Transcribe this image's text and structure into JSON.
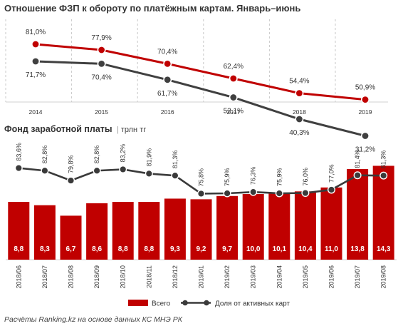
{
  "header": {
    "top_title": "Отношение ФЗП к обороту по платёжным картам. Январь–июнь",
    "bottom_title": "Фонд заработной платы",
    "bottom_unit": "трлн тг"
  },
  "source": "Расчёты Ranking.kz на основе данных КС МНЭ РК",
  "legend": {
    "bars": "Всего",
    "line": "Доля от активных карт"
  },
  "colors": {
    "red": "#c00000",
    "dark": "#404040",
    "line_dark": "#3a3a3a"
  },
  "chart_data": [
    {
      "type": "line",
      "x": [
        "2014",
        "2015",
        "2016",
        "2017",
        "2018",
        "2019"
      ],
      "series": [
        {
          "values": [
            81.0,
            77.9,
            70.4,
            62.4,
            54.4,
            50.9
          ],
          "labels": [
            "81,0%",
            "77,9%",
            "70,4%",
            "62,4%",
            "54,4%",
            "50,9%"
          ],
          "color": "red"
        },
        {
          "values": [
            71.7,
            70.4,
            61.7,
            52.1,
            40.3,
            31.2
          ],
          "labels": [
            "71,7%",
            "70,4%",
            "61,7%",
            "52,1%",
            "40,3%",
            "31,2%"
          ],
          "color": "dark"
        }
      ]
    },
    {
      "type": "bar",
      "categories": [
        "2018/06",
        "2018/07",
        "2018/08",
        "2018/09",
        "2018/10",
        "2018/11",
        "2018/12",
        "2019/01",
        "2019/02",
        "2019/03",
        "2019/04",
        "2019/05",
        "2019/06",
        "2019/07",
        "2019/08"
      ],
      "series": [
        {
          "name": "Всего",
          "values": [
            8.8,
            8.3,
            6.7,
            8.6,
            8.8,
            8.8,
            9.3,
            9.2,
            9.7,
            10.0,
            10.1,
            10.4,
            11.0,
            13.8,
            14.3
          ],
          "labels": [
            "8,8",
            "8,3",
            "6,7",
            "8,6",
            "8,8",
            "8,8",
            "9,3",
            "9,2",
            "9,7",
            "10,0",
            "10,1",
            "10,4",
            "11,0",
            "13,8",
            "14,3"
          ]
        },
        {
          "name": "Доля от активных карт",
          "values": [
            83.6,
            82.8,
            79.8,
            82.8,
            83.2,
            81.9,
            81.3,
            75.8,
            75.9,
            76.3,
            75.9,
            76.0,
            77.0,
            81.4,
            81.3
          ],
          "labels": [
            "83,6%",
            "82,8%",
            "79,8%",
            "82,8%",
            "83,2%",
            "81,9%",
            "81,3%",
            "75,8%",
            "75,9%",
            "76,3%",
            "75,9%",
            "76,0%",
            "77,0%",
            "81,4%",
            "81,3%"
          ]
        }
      ]
    }
  ]
}
